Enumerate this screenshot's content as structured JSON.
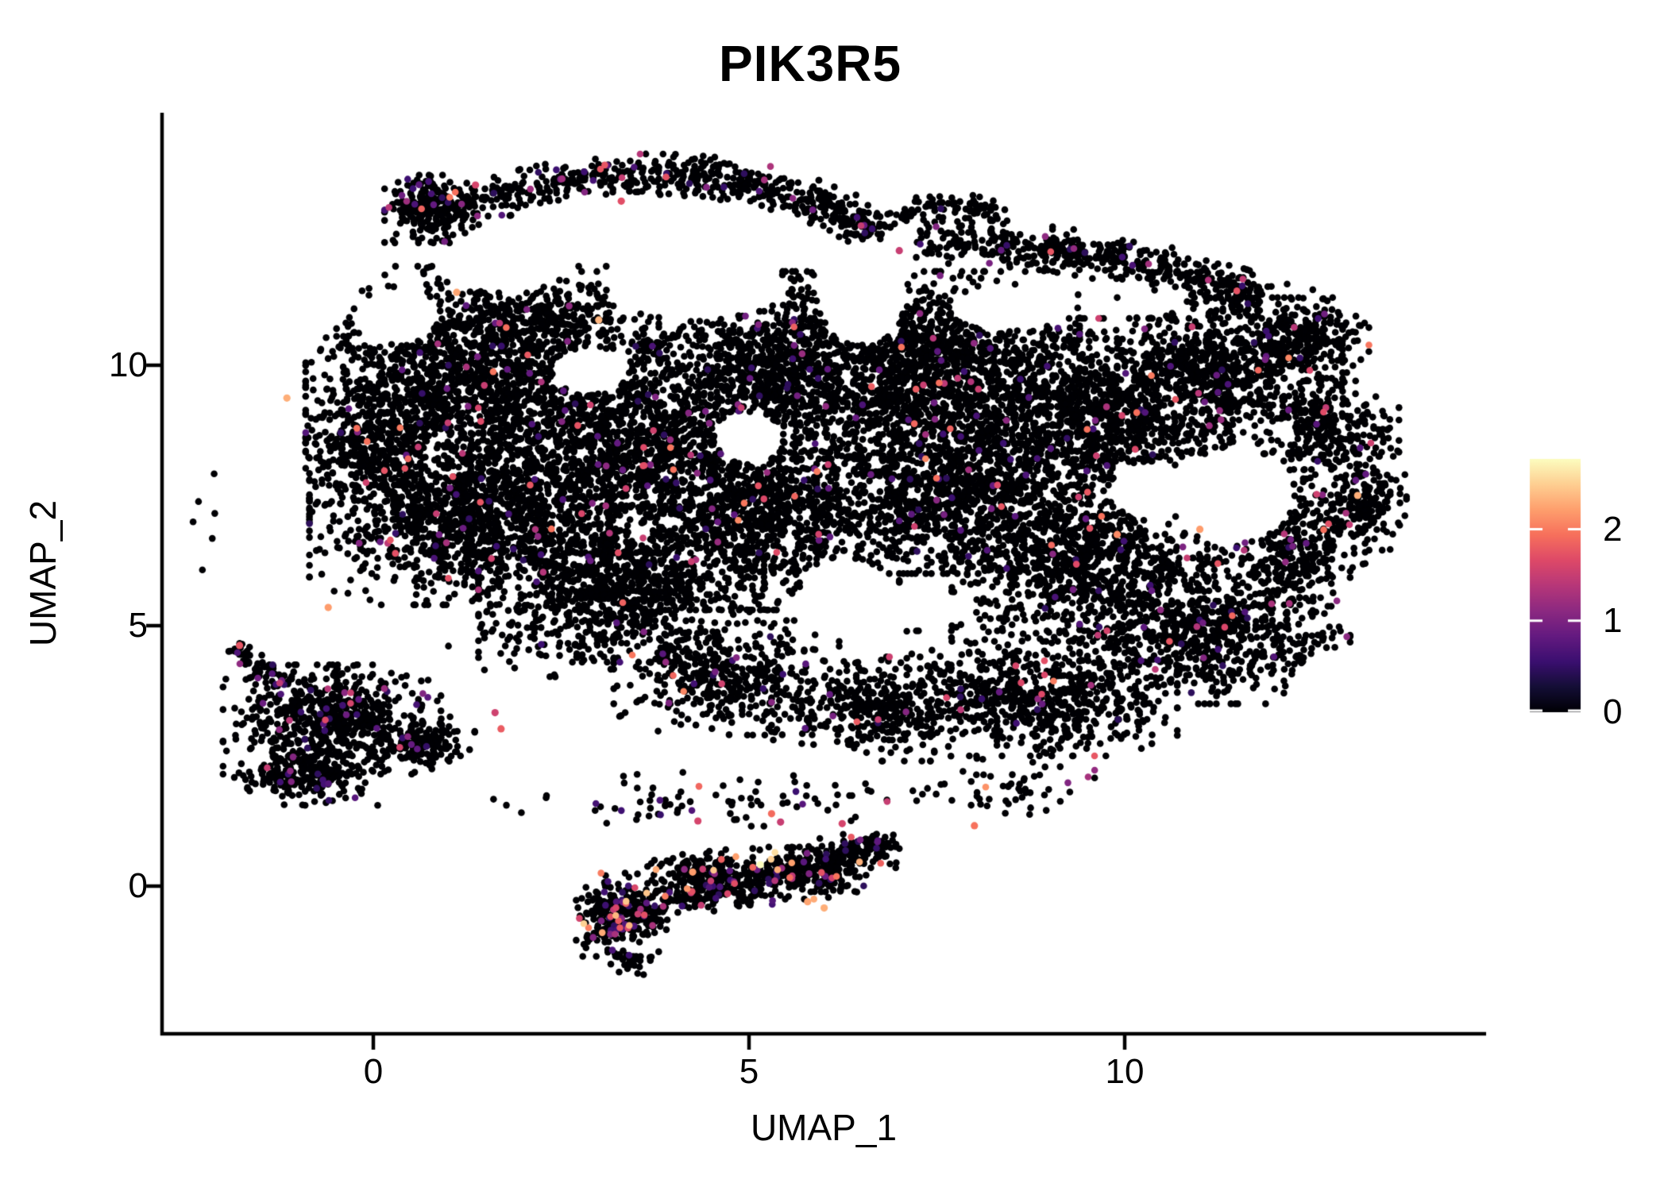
{
  "title": "PIK3R5",
  "figure": {
    "background": "#ffffff",
    "axis_color": "#000000",
    "text_color": "#000000"
  },
  "chart_data": {
    "type": "scatter",
    "title": "PIK3R5",
    "subtitle": "",
    "xlabel": "UMAP_1",
    "ylabel": "UMAP_2",
    "xlim": [
      -2.81,
      14.82
    ],
    "ylim": [
      -2.84,
      14.88
    ],
    "grid": false,
    "x_ticks": [
      {
        "value": 0,
        "label": "0"
      },
      {
        "value": 5,
        "label": "5"
      },
      {
        "value": 10,
        "label": "10"
      }
    ],
    "y_ticks": [
      {
        "value": 0,
        "label": "0"
      },
      {
        "value": 5,
        "label": "5"
      },
      {
        "value": 10,
        "label": "10"
      }
    ],
    "legend": {
      "kind": "colorbar",
      "position": "right",
      "vmin": 0,
      "vmax": 2.77,
      "ticks": [
        {
          "value": 0,
          "label": "0"
        },
        {
          "value": 1,
          "label": "1"
        },
        {
          "value": 2,
          "label": "2"
        }
      ],
      "colormap": "magma",
      "colormap_stops": [
        [
          0.0,
          "#000004"
        ],
        [
          0.1,
          "#140e36"
        ],
        [
          0.2,
          "#3b0f70"
        ],
        [
          0.3,
          "#641a80"
        ],
        [
          0.4,
          "#8c2981"
        ],
        [
          0.5,
          "#b73779"
        ],
        [
          0.6,
          "#de4968"
        ],
        [
          0.7,
          "#f7705c"
        ],
        [
          0.8,
          "#fe9f6d"
        ],
        [
          0.9,
          "#fecf92"
        ],
        [
          1.0,
          "#fcfdbf"
        ]
      ]
    },
    "points": {
      "seed": 20240613,
      "radius_px": 4.3,
      "highlight_radius_px": 4.6,
      "value_floor": 0.45,
      "zero_color": "#000004",
      "clusters": [
        {
          "group": "main",
          "cx": 1.1,
          "cy": 9.8,
          "rx": 2.0,
          "ry": 2.1,
          "n": 1250,
          "p": 0.03,
          "vmax": 2.1
        },
        {
          "group": "main",
          "cx": 1.15,
          "cy": 7.1,
          "rx": 2.0,
          "ry": 1.7,
          "n": 1250,
          "p": 0.03,
          "vmax": 2.1
        },
        {
          "group": "main",
          "cx": 3.3,
          "cy": 8.5,
          "rx": 2.0,
          "ry": 2.1,
          "n": 1300,
          "p": 0.03,
          "vmax": 2.1
        },
        {
          "group": "main",
          "cx": 3.3,
          "cy": 5.8,
          "rx": 1.9,
          "ry": 1.5,
          "n": 950,
          "p": 0.03,
          "vmax": 2.1
        },
        {
          "group": "main",
          "cx": 5.3,
          "cy": 7.2,
          "rx": 1.7,
          "ry": 1.9,
          "n": 1000,
          "p": 0.03,
          "vmax": 2.1
        },
        {
          "group": "main",
          "cx": 5.4,
          "cy": 10.0,
          "rx": 1.8,
          "ry": 1.8,
          "n": 950,
          "p": 0.03,
          "vmax": 2.1
        },
        {
          "group": "main",
          "cx": 7.5,
          "cy": 10.0,
          "rx": 1.9,
          "ry": 1.8,
          "n": 1150,
          "p": 0.035,
          "vmax": 2.1
        },
        {
          "group": "main",
          "cx": 7.7,
          "cy": 7.7,
          "rx": 1.8,
          "ry": 1.7,
          "n": 1050,
          "p": 0.035,
          "vmax": 2.1
        },
        {
          "group": "main",
          "cx": 9.6,
          "cy": 9.0,
          "rx": 1.8,
          "ry": 1.9,
          "n": 1150,
          "p": 0.035,
          "vmax": 2.1
        },
        {
          "group": "main",
          "cx": 9.4,
          "cy": 6.2,
          "rx": 1.7,
          "ry": 1.5,
          "n": 850,
          "p": 0.03,
          "vmax": 2.1
        },
        {
          "group": "main",
          "cx": 11.4,
          "cy": 9.8,
          "rx": 1.5,
          "ry": 1.5,
          "n": 700,
          "p": 0.03,
          "vmax": 2.1
        },
        {
          "group": "main",
          "cx": 11.2,
          "cy": 4.9,
          "rx": 1.8,
          "ry": 1.4,
          "n": 750,
          "p": 0.03,
          "vmax": 2.1
        },
        {
          "group": "main",
          "cx": 8.9,
          "cy": 3.7,
          "rx": 1.8,
          "ry": 1.2,
          "n": 650,
          "p": 0.03,
          "vmax": 2.1
        },
        {
          "group": "main",
          "cx": 6.8,
          "cy": 3.4,
          "rx": 1.5,
          "ry": 1.0,
          "n": 420,
          "p": 0.03,
          "vmax": 2.1
        },
        {
          "group": "main",
          "cx": 4.7,
          "cy": 4.0,
          "rx": 1.5,
          "ry": 1.1,
          "n": 420,
          "p": 0.03,
          "vmax": 2.1
        },
        {
          "group": "main",
          "cx": 2.4,
          "cy": 10.9,
          "rx": 1.4,
          "ry": 0.9,
          "n": 300,
          "p": 0.03,
          "vmax": 2.1
        },
        {
          "group": "main",
          "cx": 0.0,
          "cy": 8.6,
          "rx": 0.9,
          "ry": 1.2,
          "n": 280,
          "p": 0.03,
          "vmax": 2.1
        },
        {
          "group": "main",
          "cx": 12.2,
          "cy": 6.7,
          "rx": 1.0,
          "ry": 1.3,
          "n": 300,
          "p": 0.03,
          "vmax": 2.1
        },
        {
          "group": "main",
          "cx": 12.35,
          "cy": 10.6,
          "rx": 0.9,
          "ry": 0.85,
          "n": 230,
          "p": 0.035,
          "vmax": 2.1
        },
        {
          "group": "main",
          "cx": 12.8,
          "cy": 8.7,
          "rx": 0.85,
          "ry": 1.0,
          "n": 260,
          "p": 0.035,
          "vmax": 2.1
        },
        {
          "group": "main",
          "cx": 13.25,
          "cy": 7.35,
          "rx": 0.5,
          "ry": 0.9,
          "n": 160,
          "p": 0.03,
          "vmax": 2.1,
          "noclip": true
        },
        {
          "group": "main",
          "cx": 0.75,
          "cy": 13.0,
          "rx": 0.6,
          "ry": 0.65,
          "n": 240,
          "p": 0.05,
          "vmax": 2.0,
          "noclip": true
        },
        {
          "group": "main",
          "path": [
            [
              0.9,
              12.9
            ],
            [
              4.3,
              14.6
            ],
            [
              6.8,
              12.5
            ]
          ],
          "w": 0.18,
          "n": 600,
          "p": 0.05,
          "vmax": 2.0,
          "noclip": true
        },
        {
          "group": "main",
          "path": [
            [
              7.3,
              12.4
            ],
            [
              9.7,
              12.4
            ],
            [
              11.9,
              11.2
            ]
          ],
          "w": 0.2,
          "n": 500,
          "p": 0.04,
          "vmax": 2.0,
          "noclip": true
        },
        {
          "group": "main",
          "path": [
            [
              6.9,
              12.8
            ],
            [
              7.6,
              13.3
            ],
            [
              8.3,
              12.9
            ]
          ],
          "w": 0.1,
          "n": 80,
          "p": 0.05,
          "vmax": 2.0,
          "noclip": true
        },
        {
          "group": "bl",
          "cx": -0.55,
          "cy": 3.2,
          "rx": 1.45,
          "ry": 1.05,
          "n": 620,
          "p": 0.055,
          "vmax": 1.7
        },
        {
          "group": "bl",
          "cx": -0.85,
          "cy": 2.1,
          "rx": 1.0,
          "ry": 0.55,
          "n": 220,
          "p": 0.05,
          "vmax": 1.7
        },
        {
          "group": "bl",
          "cx": 0.75,
          "cy": 2.75,
          "rx": 0.6,
          "ry": 0.5,
          "n": 110,
          "p": 0.05,
          "vmax": 1.7
        },
        {
          "group": "bl",
          "path": [
            [
              -1.85,
              4.6
            ],
            [
              -1.5,
              4.2
            ],
            [
              -1.1,
              3.9
            ]
          ],
          "w": 0.08,
          "n": 55,
          "p": 0.08,
          "vmax": 1.5,
          "noclip": true
        },
        {
          "group": "bc",
          "cx": 3.3,
          "cy": -0.55,
          "rx": 0.6,
          "ry": 0.8,
          "n": 270,
          "p": 0.11,
          "vmax": 2.6
        },
        {
          "group": "bc",
          "cx": 4.5,
          "cy": 0.1,
          "rx": 0.85,
          "ry": 0.6,
          "n": 300,
          "p": 0.11,
          "vmax": 2.6
        },
        {
          "group": "bc",
          "cx": 5.85,
          "cy": 0.25,
          "rx": 0.8,
          "ry": 0.5,
          "n": 260,
          "p": 0.11,
          "vmax": 2.6
        },
        {
          "group": "bc",
          "cx": 6.6,
          "cy": 0.7,
          "rx": 0.5,
          "ry": 0.35,
          "n": 80,
          "p": 0.11,
          "vmax": 2.6
        },
        {
          "group": "bc",
          "path": [
            [
              2.9,
              -1.0
            ],
            [
              4.8,
              0.4
            ],
            [
              6.9,
              0.85
            ]
          ],
          "w": 0.14,
          "n": 140,
          "p": 0.1,
          "vmax": 2.6
        },
        {
          "group": "bc",
          "cx": 3.4,
          "cy": -1.45,
          "rx": 0.3,
          "ry": 0.25,
          "n": 25,
          "p": 0.05,
          "vmax": 2.0
        },
        {
          "group": "noise",
          "cx": 4.6,
          "cy": 1.7,
          "rx": 3.0,
          "ry": 0.55,
          "n": 85,
          "p": 0.06,
          "vmax": 2.2
        },
        {
          "group": "noise",
          "cx": 2.3,
          "cy": 4.7,
          "rx": 1.3,
          "ry": 0.8,
          "n": 60,
          "p": 0.05,
          "vmax": 2.0
        },
        {
          "group": "noise",
          "cx": 8.3,
          "cy": 1.9,
          "rx": 1.3,
          "ry": 0.6,
          "n": 55,
          "p": 0.06,
          "vmax": 2.2
        },
        {
          "group": "noise",
          "cx": -2.25,
          "cy": 7.0,
          "rx": 0.25,
          "ry": 1.2,
          "n": 6,
          "p": 0.2,
          "vmax": 1.2
        }
      ],
      "clips": {
        "main": {
          "cx": 6.3,
          "cy": 7.9,
          "rx": 7.8,
          "ry": 6.3
        },
        "bl": {
          "cx": -0.45,
          "cy": 3.1,
          "rx": 1.9,
          "ry": 1.7
        }
      },
      "holes": [
        {
          "cx": 11.45,
          "cy": 7.5,
          "rx": 0.8,
          "ry": 0.9
        },
        {
          "cx": 6.3,
          "cy": 5.5,
          "rx": 0.65,
          "ry": 0.8
        },
        {
          "cx": 4.3,
          "cy": 11.5,
          "rx": 1.2,
          "ry": 0.6
        },
        {
          "cx": 1.7,
          "cy": 11.9,
          "rx": 0.9,
          "ry": 0.5
        },
        {
          "cx": 6.5,
          "cy": 11.4,
          "rx": 0.6,
          "ry": 1.0
        },
        {
          "cx": 8.4,
          "cy": 11.1,
          "rx": 0.7,
          "ry": 0.45
        },
        {
          "cx": 2.9,
          "cy": 9.9,
          "rx": 0.5,
          "ry": 0.45
        },
        {
          "cx": 0.3,
          "cy": 10.9,
          "rx": 0.55,
          "ry": 0.5
        },
        {
          "cx": 5.0,
          "cy": 8.6,
          "rx": 0.45,
          "ry": 0.5
        },
        {
          "cx": 10.3,
          "cy": 7.6,
          "rx": 0.5,
          "ry": 0.55
        },
        {
          "cx": 5.7,
          "cy": 2.2,
          "rx": 1.1,
          "ry": 0.5
        }
      ],
      "highlights": [
        [
          -1.15,
          9.37,
          2.3
        ],
        [
          -1.78,
          4.62,
          1.75
        ],
        [
          3.0,
          10.87,
          2.35
        ],
        [
          1.11,
          11.4,
          2.25
        ],
        [
          13.1,
          7.5,
          2.3
        ],
        [
          5.15,
          0.41,
          2.77
        ],
        [
          4.25,
          0.27,
          2.2
        ],
        [
          5.78,
          -0.3,
          2.25
        ],
        [
          6.0,
          -0.42,
          2.3
        ],
        [
          4.32,
          1.25,
          1.6
        ],
        [
          5.3,
          1.39,
          1.9
        ],
        [
          8.0,
          1.16,
          1.95
        ],
        [
          1.62,
          3.33,
          1.55
        ],
        [
          1.7,
          3.02,
          1.8
        ],
        [
          3.3,
          13.15,
          1.7
        ],
        [
          1.36,
          13.46,
          1.6
        ],
        [
          7.0,
          12.2,
          1.5
        ],
        [
          5.42,
          1.23,
          1.5
        ],
        [
          6.24,
          1.2,
          1.6
        ],
        [
          -0.6,
          5.35,
          2.2
        ],
        [
          11.0,
          6.85,
          2.2
        ],
        [
          9.9,
          6.75,
          2.1
        ]
      ]
    }
  }
}
